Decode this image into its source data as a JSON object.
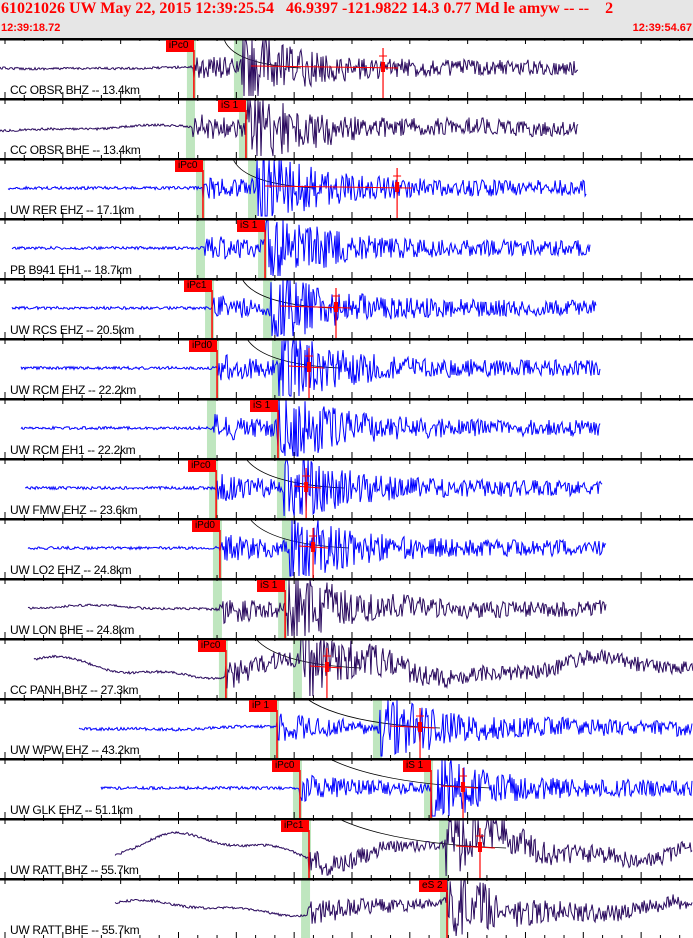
{
  "header": {
    "title": "61021026 UW May 22, 2015 12:39:25.54   46.9397 -121.9822 14.3 0.77 Md le amyw -- --    2",
    "window_start": "12:39:18.72",
    "window_end": "12:39:54.67",
    "window_seconds": 35.95
  },
  "colors": {
    "header_bg": "#e6e6e6",
    "title": "#ff0000",
    "lp_trace": "#2a0a5e",
    "sp_trace": "#0000ff",
    "pick": "#ff0000",
    "band": "#bfe6bf"
  },
  "traces": [
    {
      "label": "CC OBSR BHZ -- 13.4km",
      "kind": "lp",
      "p": 10.06,
      "s": 12.5,
      "start": 0,
      "end": 29.99,
      "pick": "iPc0",
      "pick_on": "p",
      "mag": 19.87,
      "lp": 0.05
    },
    {
      "label": "CC OBSR BHE -- 13.4km",
      "kind": "lp",
      "p": 10.01,
      "s": 12.76,
      "start": 0,
      "end": 29.99,
      "pick": "iS 1",
      "pick_on": "s",
      "mag": null,
      "lp": 0.15
    },
    {
      "label": "UW RER EHZ -- 17.1km",
      "kind": "sp",
      "p": 10.53,
      "s": 13.23,
      "start": 0.42,
      "end": 30.45,
      "pick": "iPc0",
      "pick_on": "p",
      "mag": 20.6,
      "lp": 0
    },
    {
      "label": "PB B941 EH1 -- 18.7km",
      "kind": "sp",
      "p": 10.53,
      "s": 13.75,
      "start": 0.62,
      "end": 30.61,
      "pick": "iS 1",
      "pick_on": "s",
      "mag": null,
      "lp": 0
    },
    {
      "label": "UW RCS EHZ -- 20.5km",
      "kind": "sp",
      "p": 11.0,
      "s": 14.01,
      "start": 0.62,
      "end": 30.92,
      "pick": "iPc1",
      "pick_on": "p",
      "mag": 17.43,
      "lp": 0
    },
    {
      "label": "UW RCM EHZ -- 22.2km",
      "kind": "sp",
      "p": 11.26,
      "s": 14.47,
      "start": 1.09,
      "end": 31.13,
      "pick": "iPd0",
      "pick_on": "p",
      "mag": 16.03,
      "lp": 0
    },
    {
      "label": "UW RCM EH1 -- 22.2km",
      "kind": "sp",
      "p": 11.1,
      "s": 14.42,
      "start": 1.09,
      "end": 31.13,
      "pick": "iS 1",
      "pick_on": "s",
      "mag": null,
      "lp": 0
    },
    {
      "label": "UW FMW EHZ -- 23.6km",
      "kind": "sp",
      "p": 11.21,
      "s": 14.73,
      "start": 1.3,
      "end": 31.28,
      "pick": "iPc0",
      "pick_on": "p",
      "mag": 15.88,
      "lp": 0
    },
    {
      "label": "UW LO2 EHZ -- 24.8km",
      "kind": "sp",
      "p": 11.41,
      "s": 14.99,
      "start": 1.45,
      "end": 31.44,
      "pick": "iPd0",
      "pick_on": "p",
      "mag": 16.24,
      "lp": 0
    },
    {
      "label": "UW LON BHE -- 24.8km",
      "kind": "lp",
      "p": 11.41,
      "s": 14.79,
      "start": 1.45,
      "end": 31.44,
      "pick": "iS 1",
      "pick_on": "s",
      "mag": null,
      "lp": 0.15
    },
    {
      "label": "CC PANH BHZ -- 27.3km",
      "kind": "lp",
      "p": 11.72,
      "s": 15.56,
      "start": 1.76,
      "end": 35.95,
      "pick": "iPc0",
      "pick_on": "p",
      "mag": 16.96,
      "lp": 0.6
    },
    {
      "label": "UW WPW EHZ -- 43.2km",
      "kind": "sp",
      "p": 14.37,
      "s": 19.71,
      "start": 4.1,
      "end": 35.95,
      "pick": "iP 1",
      "pick_on": "p",
      "mag": 21.79,
      "lp": 0.1
    },
    {
      "label": "UW GLK EHZ -- 51.1km",
      "kind": "sp",
      "p": 15.56,
      "s": 22.36,
      "start": 5.24,
      "end": 35.95,
      "pick": "iPc0",
      "pick_on": "p",
      "pick2": "iS 1",
      "mag": 24.02,
      "lp": 0
    },
    {
      "label": "UW RATT BHZ -- 55.7km",
      "kind": "lp",
      "p": 16.03,
      "s": 23.14,
      "start": 5.97,
      "end": 35.95,
      "pick": "iPc1",
      "pick_on": "p",
      "mag": 24.9,
      "lp": 0.8
    },
    {
      "label": "UW RATT BHE -- 55.7km",
      "kind": "lp",
      "p": 15.98,
      "s": 23.19,
      "start": 5.97,
      "end": 35.95,
      "pick": "eS 2",
      "pick_on": "s",
      "mag": null,
      "lp": 0.4
    }
  ]
}
